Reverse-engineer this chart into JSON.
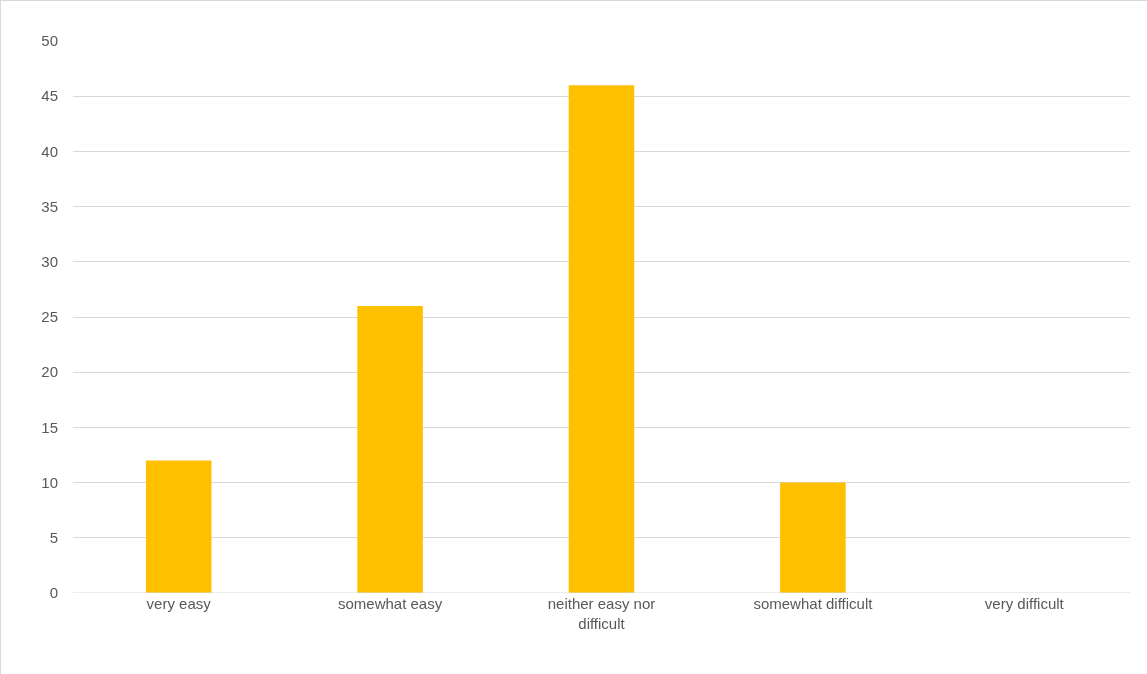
{
  "chart_data": {
    "type": "bar",
    "categories": [
      "very easy",
      "somewhat easy",
      "neither easy nor difficult",
      "somewhat difficult",
      "very difficult"
    ],
    "values": [
      12,
      26,
      46,
      10,
      0
    ],
    "color": "#ffc000",
    "ylim": [
      0,
      50
    ],
    "yticks": [
      0,
      5,
      10,
      15,
      20,
      25,
      30,
      35,
      40,
      45,
      50
    ],
    "grid": "y",
    "legend": false
  }
}
